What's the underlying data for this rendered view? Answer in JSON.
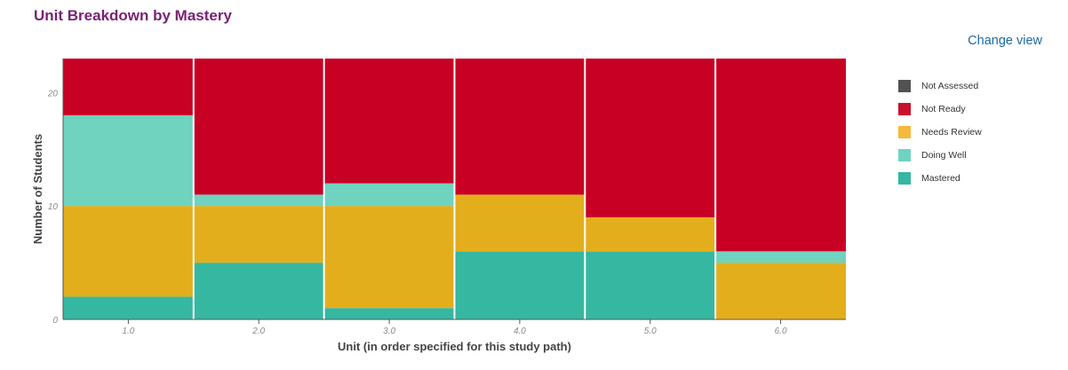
{
  "title": "Unit Breakdown by Mastery",
  "change_view": "Change view",
  "legend": [
    {
      "label": "Not Assessed",
      "color": "#525252"
    },
    {
      "label": "Not Ready",
      "color": "#c8102e"
    },
    {
      "label": "Needs Review",
      "color": "#f6b93b"
    },
    {
      "label": "Doing Well",
      "color": "#6fd3c0"
    },
    {
      "label": "Mastered",
      "color": "#35b7a1"
    }
  ],
  "chart_data": {
    "type": "bar",
    "stacked": true,
    "categories": [
      "1.0",
      "2.0",
      "3.0",
      "4.0",
      "5.0",
      "6.0"
    ],
    "series": [
      {
        "name": "Mastered",
        "color": "#35b7a1",
        "values": [
          2,
          5,
          1,
          6,
          6,
          0
        ]
      },
      {
        "name": "Needs Review",
        "color": "#e3ae1c",
        "values": [
          8,
          5,
          9,
          5,
          3,
          5
        ]
      },
      {
        "name": "Doing Well",
        "color": "#6fd3c0",
        "values": [
          8,
          1,
          2,
          0,
          0,
          1
        ]
      },
      {
        "name": "Not Ready",
        "color": "#c70024",
        "values": [
          5,
          12,
          11,
          12,
          14,
          17
        ]
      },
      {
        "name": "Not Assessed",
        "color": "#525252",
        "values": [
          0,
          0,
          0,
          0,
          0,
          0
        ]
      }
    ],
    "xlabel": "Unit (in order specified for this study path)",
    "ylabel": "Number of Students",
    "yticks": [
      0,
      10,
      20
    ],
    "ylim": [
      0,
      23
    ],
    "grid": true,
    "legend_position": "right"
  }
}
